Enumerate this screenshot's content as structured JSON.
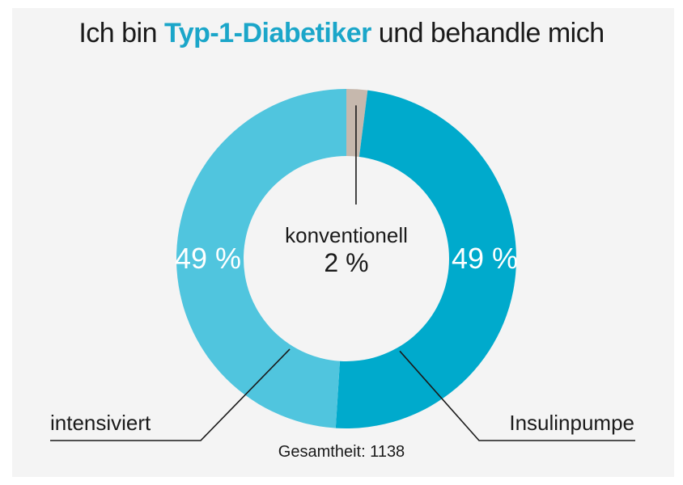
{
  "title": {
    "prefix": "Ich bin ",
    "highlight": "Typ-1-Diabetiker",
    "suffix": " und behandle mich",
    "highlight_color": "#1ba6c9"
  },
  "footer": "Gesamtheit: 1138",
  "chart_data": {
    "type": "pie",
    "donut": true,
    "categories": [
      "konventionell",
      "Insulinpumpe",
      "intensiviert"
    ],
    "values": [
      2,
      49,
      49
    ],
    "labels": [
      "2 %",
      "49 %",
      "49 %"
    ],
    "colors": [
      "#c6b8ad",
      "#00aacc",
      "#50c5de"
    ],
    "total_label": "Gesamtheit: 1138"
  }
}
